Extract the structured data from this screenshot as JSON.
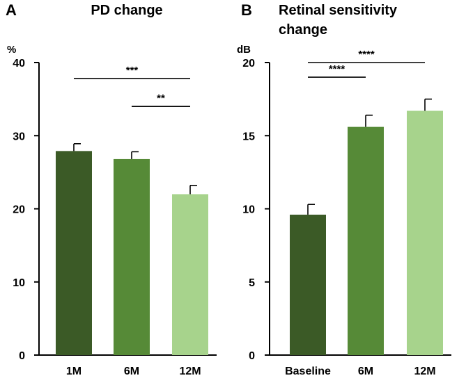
{
  "chart_data": [
    {
      "panel": "A",
      "type": "bar",
      "title": "PD change",
      "ylabel": "%",
      "xlabel": "",
      "ylim": [
        0,
        40
      ],
      "yticks": [
        0,
        10,
        20,
        30,
        40
      ],
      "categories": [
        "1M",
        "6M",
        "12M"
      ],
      "values": [
        27.9,
        26.8,
        22.0
      ],
      "errors": [
        1.0,
        1.0,
        1.2
      ],
      "colors": [
        "#3b5a26",
        "#568a37",
        "#a7d38c"
      ],
      "significance": [
        {
          "from": 0,
          "to": 2,
          "label": "***",
          "y": 37.8
        },
        {
          "from": 1,
          "to": 2,
          "label": "**",
          "y": 34.0
        }
      ]
    },
    {
      "panel": "B",
      "type": "bar",
      "title": "Retinal sensitivity change",
      "title_lines": [
        "Retinal sensitivity",
        "change"
      ],
      "ylabel": "dB",
      "xlabel": "",
      "ylim": [
        0,
        20
      ],
      "yticks": [
        0,
        5,
        10,
        15,
        20
      ],
      "categories": [
        "Baseline",
        "6M",
        "12M"
      ],
      "values": [
        9.6,
        15.6,
        16.7
      ],
      "errors": [
        0.7,
        0.8,
        0.8
      ],
      "colors": [
        "#3b5a26",
        "#568a37",
        "#a7d38c"
      ],
      "significance": [
        {
          "from": 0,
          "to": 2,
          "label": "****",
          "y": 20.0
        },
        {
          "from": 0,
          "to": 1,
          "label": "****",
          "y": 19.0
        }
      ]
    }
  ]
}
